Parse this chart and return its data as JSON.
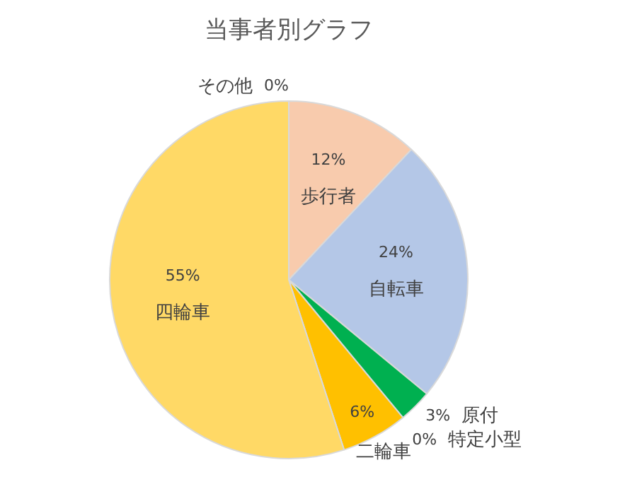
{
  "chart_data": {
    "type": "pie",
    "title": "当事者別グラフ",
    "categories": [
      "歩行者",
      "自転車",
      "原付",
      "特定小型",
      "二輪車",
      "四輪車",
      "その他"
    ],
    "values": [
      12,
      24,
      3,
      0,
      6,
      55,
      0
    ],
    "colors": [
      "#f8cbad",
      "#b4c7e7",
      "#00b050",
      "#a5a5a5",
      "#ffc000",
      "#ffd966",
      "#7f7f7f"
    ],
    "value_labels": [
      "12%",
      "24%",
      "3%",
      "0%",
      "6%",
      "55%",
      "0%"
    ],
    "legend": false
  }
}
